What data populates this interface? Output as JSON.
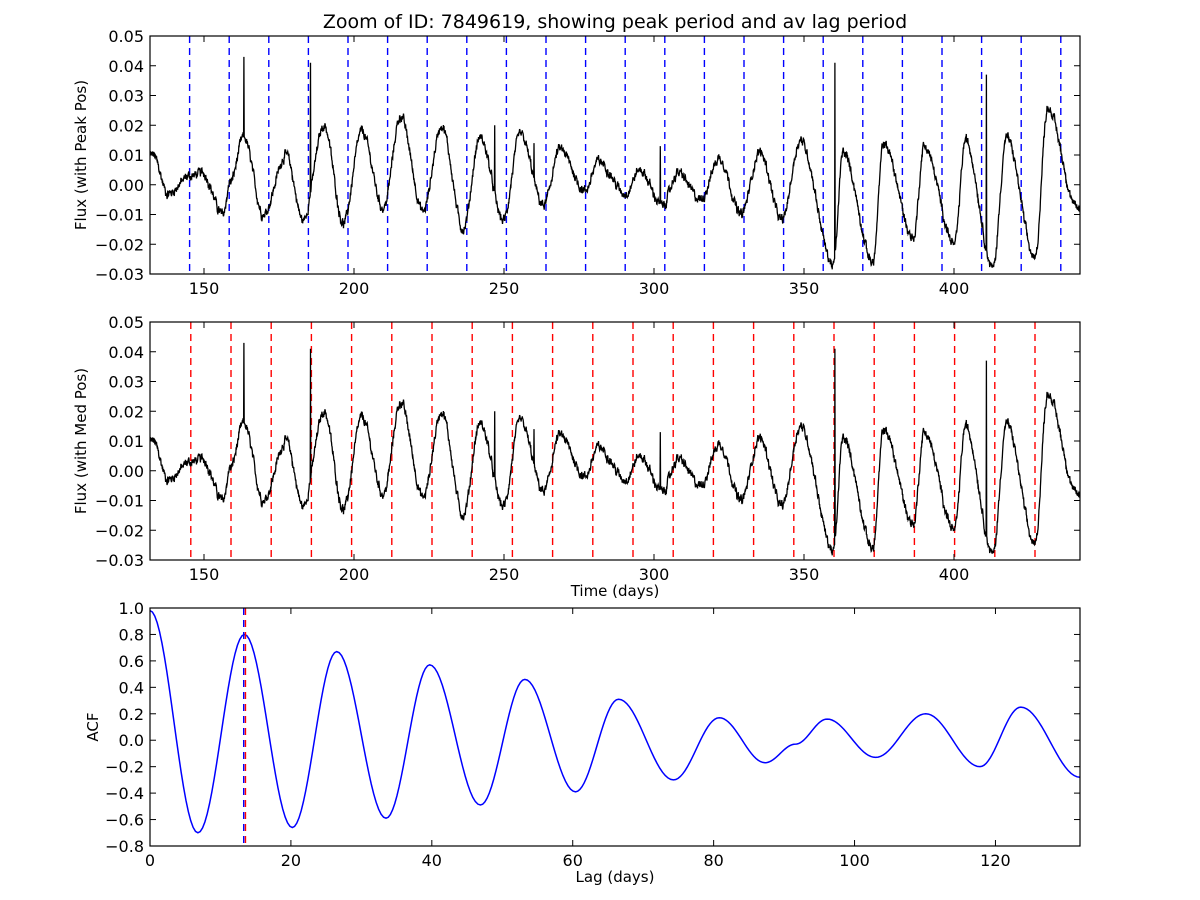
{
  "title": "Zoom of ID: 7849619, showing peak period and av lag period",
  "colors": {
    "flux": "#000000",
    "acf": "#0000ff",
    "peak_lines": "#0000ff",
    "median_lines": "#ff0000",
    "axes": "#000000"
  },
  "chart_data": [
    {
      "type": "line",
      "ylabel": "Flux (with Peak Pos)",
      "xlabel": "",
      "xlim": [
        132,
        442
      ],
      "ylim": [
        -0.03,
        0.05
      ],
      "xticks": [
        150,
        200,
        250,
        300,
        350,
        400
      ],
      "xtick_labels": [
        "150",
        "200",
        "250",
        "300",
        "350",
        "400"
      ],
      "yticks": [
        -0.03,
        -0.02,
        -0.01,
        0.0,
        0.01,
        0.02,
        0.03,
        0.04,
        0.05
      ],
      "ytick_labels": [
        "−0.03",
        "−0.02",
        "−0.01",
        "0.00",
        "0.01",
        "0.02",
        "0.03",
        "0.04",
        "0.05"
      ],
      "series_color": "#000000",
      "period_days": 13.2,
      "peaks": [
        {
          "t": 133.0,
          "f": 0.01
        },
        {
          "t": 145.4,
          "f": 0.003
        },
        {
          "t": 149.5,
          "f": 0.004
        },
        {
          "t": 158.8,
          "f": 0.001
        },
        {
          "t": 163.2,
          "f": 0.016
        },
        {
          "t": 177.4,
          "f": 0.01
        },
        {
          "t": 190.0,
          "f": 0.02
        },
        {
          "t": 202.6,
          "f": 0.018
        },
        {
          "t": 215.5,
          "f": 0.023
        },
        {
          "t": 229.2,
          "f": 0.02
        },
        {
          "t": 242.0,
          "f": 0.016
        },
        {
          "t": 255.4,
          "f": 0.017
        },
        {
          "t": 268.6,
          "f": 0.012
        },
        {
          "t": 281.5,
          "f": 0.008
        },
        {
          "t": 295.2,
          "f": 0.005
        },
        {
          "t": 308.0,
          "f": 0.004
        },
        {
          "t": 321.8,
          "f": 0.009
        },
        {
          "t": 335.3,
          "f": 0.011
        },
        {
          "t": 348.8,
          "f": 0.015
        },
        {
          "t": 363.0,
          "f": 0.011
        },
        {
          "t": 376.5,
          "f": 0.014
        },
        {
          "t": 390.0,
          "f": 0.013
        },
        {
          "t": 403.8,
          "f": 0.015
        },
        {
          "t": 417.5,
          "f": 0.016
        },
        {
          "t": 431.2,
          "f": 0.026
        }
      ],
      "troughs": [
        {
          "t": 138.0,
          "f": -0.003
        },
        {
          "t": 156.3,
          "f": -0.01
        },
        {
          "t": 169.8,
          "f": -0.01
        },
        {
          "t": 183.0,
          "f": -0.012
        },
        {
          "t": 196.5,
          "f": -0.013
        },
        {
          "t": 209.8,
          "f": -0.008
        },
        {
          "t": 223.0,
          "f": -0.009
        },
        {
          "t": 236.4,
          "f": -0.015
        },
        {
          "t": 249.8,
          "f": -0.012
        },
        {
          "t": 263.2,
          "f": -0.007
        },
        {
          "t": 277.0,
          "f": -0.002
        },
        {
          "t": 290.5,
          "f": -0.003
        },
        {
          "t": 302.8,
          "f": -0.007
        },
        {
          "t": 315.5,
          "f": -0.005
        },
        {
          "t": 329.0,
          "f": -0.01
        },
        {
          "t": 342.6,
          "f": -0.012
        },
        {
          "t": 359.8,
          "f": -0.027
        },
        {
          "t": 373.0,
          "f": -0.026
        },
        {
          "t": 386.5,
          "f": -0.018
        },
        {
          "t": 400.2,
          "f": -0.02
        },
        {
          "t": 413.0,
          "f": -0.028
        },
        {
          "t": 427.0,
          "f": -0.025
        },
        {
          "t": 441.0,
          "f": -0.008
        }
      ],
      "spikes": [
        {
          "t": 163.3,
          "f": 0.043
        },
        {
          "t": 185.5,
          "f": 0.041
        },
        {
          "t": 246.9,
          "f": 0.02
        },
        {
          "t": 260.0,
          "f": 0.014
        },
        {
          "t": 302.1,
          "f": 0.013
        },
        {
          "t": 360.3,
          "f": 0.041
        },
        {
          "t": 410.8,
          "f": 0.037
        }
      ],
      "vlines": {
        "style": "dashed",
        "color": "#0000ff",
        "x": [
          145.2,
          158.4,
          171.6,
          184.8,
          198.0,
          211.2,
          224.4,
          237.6,
          250.8,
          264.0,
          277.2,
          290.4,
          303.6,
          316.8,
          330.0,
          343.2,
          356.4,
          369.6,
          382.8,
          396.0,
          409.2,
          422.4,
          435.6
        ]
      }
    },
    {
      "type": "line",
      "ylabel": "Flux (with Med Pos)",
      "xlabel": "Time (days)",
      "xlim": [
        132,
        442
      ],
      "ylim": [
        -0.03,
        0.05
      ],
      "xticks": [
        150,
        200,
        250,
        300,
        350,
        400
      ],
      "xtick_labels": [
        "150",
        "200",
        "250",
        "300",
        "350",
        "400"
      ],
      "yticks": [
        -0.03,
        -0.02,
        -0.01,
        0.0,
        0.01,
        0.02,
        0.03,
        0.04,
        0.05
      ],
      "ytick_labels": [
        "−0.03",
        "−0.02",
        "−0.01",
        "0.00",
        "0.01",
        "0.02",
        "0.03",
        "0.04",
        "0.05"
      ],
      "series_color": "#000000",
      "same_series_as_panel": 0,
      "vlines": {
        "style": "dashed",
        "color": "#ff0000",
        "x": [
          145.6,
          159.0,
          172.4,
          185.8,
          199.2,
          212.6,
          226.0,
          239.4,
          252.8,
          266.2,
          279.6,
          293.0,
          306.4,
          319.8,
          333.2,
          346.6,
          360.0,
          373.4,
          386.8,
          400.2,
          413.6,
          427.0
        ]
      }
    },
    {
      "type": "line",
      "ylabel": "ACF",
      "xlabel": "Lag (days)",
      "xlim": [
        0,
        132
      ],
      "ylim": [
        -0.8,
        1.0
      ],
      "xticks": [
        0,
        20,
        40,
        60,
        80,
        100,
        120
      ],
      "xtick_labels": [
        "0",
        "20",
        "40",
        "60",
        "80",
        "100",
        "120"
      ],
      "yticks": [
        -0.8,
        -0.6,
        -0.4,
        -0.2,
        0.0,
        0.2,
        0.4,
        0.6,
        0.8,
        1.0
      ],
      "ytick_labels": [
        "−0.8",
        "−0.6",
        "−0.4",
        "−0.2",
        "0.0",
        "0.2",
        "0.4",
        "0.6",
        "0.8",
        "1.0"
      ],
      "series_color": "#0000ff",
      "extrema": [
        {
          "x": 0,
          "y": 0.98
        },
        {
          "x": 6.8,
          "y": -0.7
        },
        {
          "x": 13.4,
          "y": 0.8
        },
        {
          "x": 20.2,
          "y": -0.66
        },
        {
          "x": 26.5,
          "y": 0.67
        },
        {
          "x": 33.5,
          "y": -0.59
        },
        {
          "x": 39.7,
          "y": 0.57
        },
        {
          "x": 46.9,
          "y": -0.49
        },
        {
          "x": 53.2,
          "y": 0.46
        },
        {
          "x": 60.4,
          "y": -0.39
        },
        {
          "x": 66.5,
          "y": 0.31
        },
        {
          "x": 74.3,
          "y": -0.3
        },
        {
          "x": 80.8,
          "y": 0.17
        },
        {
          "x": 87.3,
          "y": -0.17
        },
        {
          "x": 91.6,
          "y": -0.03
        },
        {
          "x": 96.1,
          "y": 0.16
        },
        {
          "x": 103.0,
          "y": -0.13
        },
        {
          "x": 110.1,
          "y": 0.2
        },
        {
          "x": 117.8,
          "y": -0.2
        },
        {
          "x": 123.6,
          "y": 0.25
        },
        {
          "x": 132,
          "y": -0.28
        }
      ],
      "vlines": [
        {
          "x": 13.3,
          "color": "#0000ff",
          "style": "dashed"
        },
        {
          "x": 13.55,
          "color": "#ff0000",
          "style": "dashed"
        }
      ]
    }
  ]
}
